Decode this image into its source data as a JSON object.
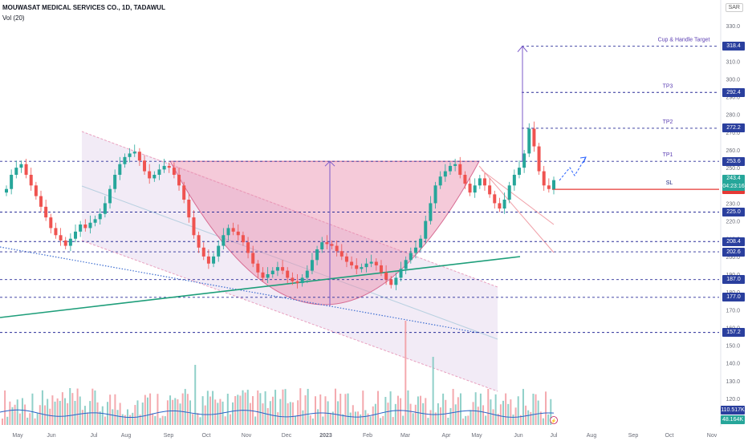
{
  "header": {
    "title": "MOUWASAT MEDICAL SERVICES CO., 1D, TADAWUL",
    "volume_label": "Vol (20)",
    "currency": "SAR"
  },
  "chart_data": {
    "type": "candlestick",
    "title": "MOUWASAT MEDICAL SERVICES CO., 1D, TADAWUL",
    "y_ticks": [
      120,
      130,
      140,
      150,
      160,
      170,
      180,
      190,
      200,
      210,
      220,
      230,
      240,
      250,
      260,
      270,
      280,
      290,
      300,
      310,
      320,
      330
    ],
    "x_ticks": [
      "May",
      "Jun",
      "Jul",
      "Aug",
      "Sep",
      "Oct",
      "Nov",
      "Dec",
      "2023",
      "Feb",
      "Mar",
      "Apr",
      "May",
      "Jun",
      "Jul",
      "Aug",
      "Sep",
      "Oct",
      "Nov"
    ],
    "levels": [
      {
        "value": 318.4,
        "text": "Cup & Handle Target",
        "label": "318.4",
        "color": "#2a2e99"
      },
      {
        "value": 292.4,
        "text": "TP3",
        "label": "292.4",
        "color": "#2a2e99"
      },
      {
        "value": 272.2,
        "text": "TP2",
        "label": "272.2",
        "color": "#2a2e99"
      },
      {
        "value": 253.6,
        "text": "TP1",
        "label": "253.6",
        "color": "#2a2e99"
      },
      {
        "value": 237.8,
        "text": "SL",
        "label": "237.8",
        "color": "#e53935"
      },
      {
        "value": 225.0,
        "text": "",
        "label": "225.0",
        "color": "#2a2e99"
      },
      {
        "value": 208.4,
        "text": "",
        "label": "208.4",
        "color": "#2a2e99"
      },
      {
        "value": 202.6,
        "text": "",
        "label": "202.6",
        "color": "#2a2e99"
      },
      {
        "value": 187.0,
        "text": "",
        "label": "187.0",
        "color": "#2a2e99"
      },
      {
        "value": 177.0,
        "text": "",
        "label": "177.0",
        "color": "#2a2e99"
      },
      {
        "value": 157.2,
        "text": "",
        "label": "157.2",
        "color": "#2a2e99"
      }
    ],
    "last_price": {
      "value": 243.4,
      "label": "243.4",
      "countdown": "04:23:16"
    },
    "volume": {
      "label": "Vol (20)",
      "ma_label": "110.517K",
      "last_label": "48.164K"
    },
    "close_series": [
      238,
      246,
      250,
      252,
      246,
      240,
      234,
      228,
      222,
      216,
      212,
      209,
      206,
      210,
      214,
      218,
      216,
      219,
      221,
      224,
      230,
      238,
      246,
      252,
      256,
      258,
      259,
      254,
      248,
      244,
      246,
      249,
      251,
      250,
      246,
      240,
      232,
      222,
      212,
      205,
      200,
      196,
      200,
      206,
      212,
      216,
      214,
      212,
      208,
      202,
      196,
      191,
      188,
      190,
      192,
      194,
      192,
      188,
      186,
      185,
      188,
      192,
      198,
      204,
      208,
      207,
      206,
      203,
      200,
      197,
      195,
      193,
      194,
      196,
      197,
      195,
      191,
      187,
      184,
      188,
      193,
      198,
      202,
      205,
      210,
      220,
      230,
      240,
      245,
      248,
      251,
      252,
      246,
      241,
      236,
      240,
      244,
      240,
      235,
      230,
      227,
      232,
      240,
      246,
      250,
      258,
      272,
      262,
      248,
      240,
      238,
      243
    ],
    "cup": {
      "left_date_index": 36,
      "bottom_value": 172,
      "right_date_index": 92,
      "rim_value": 253.6
    },
    "volume_ma": [
      100,
      105,
      110,
      108,
      112,
      118,
      115,
      110,
      108,
      112,
      116,
      114,
      110
    ]
  },
  "scale": {
    "tick_labels": [
      "120.0",
      "130.0",
      "140.0",
      "150.0",
      "160.0",
      "170.0",
      "180.0",
      "190.0",
      "200.0",
      "210.0",
      "220.0",
      "230.0",
      "240.0",
      "250.0",
      "260.0",
      "270.0",
      "280.0",
      "290.0",
      "300.0",
      "310.0",
      "320.0",
      "330.0"
    ]
  }
}
